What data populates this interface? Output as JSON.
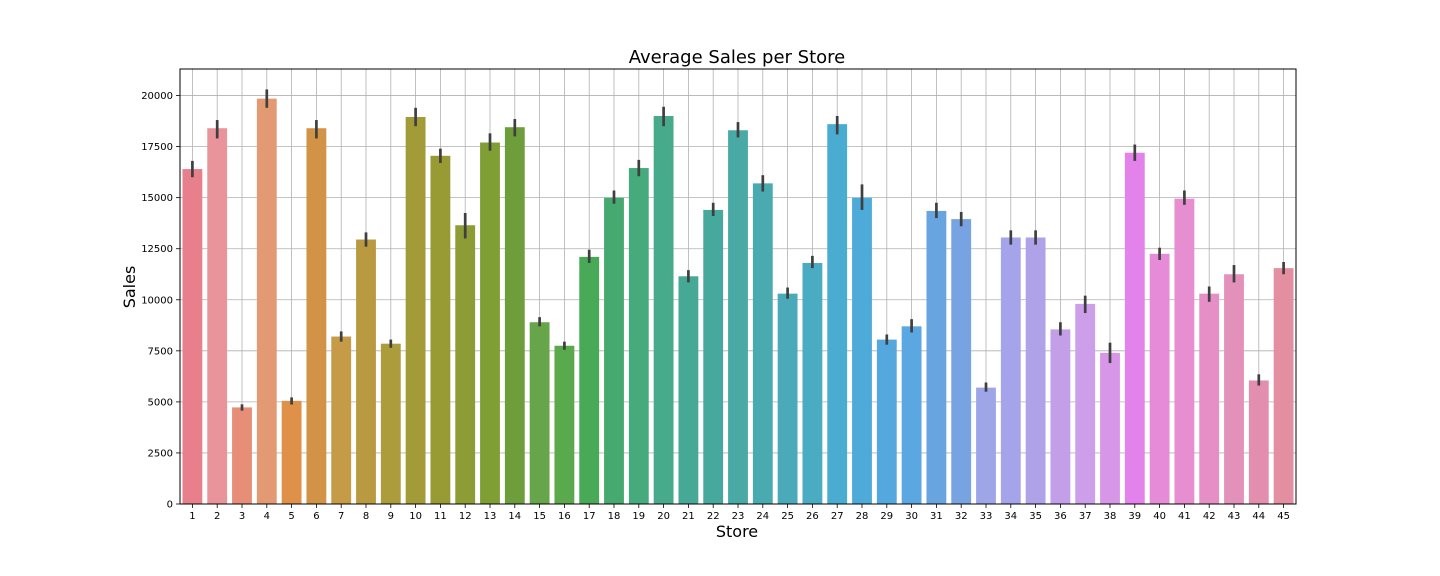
{
  "chart_data": {
    "type": "bar",
    "title": "Average Sales per Store",
    "xlabel": "Store",
    "ylabel": "Sales",
    "ylim": [
      0,
      21300
    ],
    "yticks": [
      0,
      2500,
      5000,
      7500,
      10000,
      12500,
      15000,
      17500,
      20000
    ],
    "grid": true,
    "categories": [
      "1",
      "2",
      "3",
      "4",
      "5",
      "6",
      "7",
      "8",
      "9",
      "10",
      "11",
      "12",
      "13",
      "14",
      "15",
      "16",
      "17",
      "18",
      "19",
      "20",
      "21",
      "22",
      "23",
      "24",
      "25",
      "26",
      "27",
      "28",
      "29",
      "30",
      "31",
      "32",
      "33",
      "34",
      "35",
      "36",
      "37",
      "38",
      "39",
      "40",
      "41",
      "42",
      "43",
      "44",
      "45"
    ],
    "values": [
      16400,
      18400,
      4730,
      19850,
      5050,
      18400,
      8200,
      12950,
      7850,
      18950,
      17050,
      13650,
      17700,
      18450,
      8900,
      7750,
      12100,
      15000,
      16450,
      19000,
      11150,
      14400,
      18300,
      15700,
      10300,
      11800,
      18600,
      15000,
      8050,
      8700,
      14350,
      13950,
      5700,
      13050,
      13050,
      8550,
      9800,
      7400,
      17200,
      12250,
      14950,
      10300,
      11250,
      6050,
      11550
    ],
    "error_low": [
      16000,
      17900,
      4570,
      19400,
      4870,
      17900,
      7950,
      12600,
      7650,
      18500,
      16700,
      13000,
      17300,
      18000,
      8700,
      7550,
      11800,
      14700,
      16050,
      18500,
      10850,
      14100,
      17950,
      15300,
      10050,
      11550,
      18100,
      14400,
      7800,
      8400,
      14000,
      13600,
      5500,
      12700,
      12700,
      8250,
      9350,
      6900,
      16800,
      11950,
      14650,
      9900,
      10850,
      5800,
      11250
    ],
    "error_high": [
      16800,
      18800,
      4880,
      20300,
      5220,
      18800,
      8450,
      13300,
      8050,
      19400,
      17400,
      14250,
      18150,
      18850,
      9150,
      7950,
      12450,
      15350,
      16850,
      19450,
      11450,
      14750,
      18700,
      16100,
      10600,
      12150,
      19000,
      15650,
      8300,
      9050,
      14750,
      14300,
      5950,
      13400,
      13400,
      8900,
      10200,
      7900,
      17600,
      12550,
      15350,
      10650,
      11700,
      6350,
      11850
    ],
    "colors": [
      "#e8808c",
      "#e8949a",
      "#e78e78",
      "#e39a72",
      "#df9149",
      "#d29346",
      "#c59b48",
      "#b99a40",
      "#ac9c3c",
      "#a29b37",
      "#989b34",
      "#8d9c35",
      "#7f9f34",
      "#6e9d3c",
      "#66a549",
      "#5aa94d",
      "#48a957",
      "#46aa70",
      "#45ab7d",
      "#47aa8a",
      "#46a996",
      "#47a99e",
      "#48a9a5",
      "#49aab0",
      "#4aaab9",
      "#4aacc3",
      "#4bacd1",
      "#4eaad9",
      "#55a8de",
      "#5aa7e1",
      "#68a4e0",
      "#77a3e2",
      "#9fa6e8",
      "#a5a3ea",
      "#b0a2e9",
      "#c39fea",
      "#cd9ee9",
      "#d796e8",
      "#e382ea",
      "#e58bd7",
      "#e68ecf",
      "#e68fc6",
      "#e391bb",
      "#e38eae",
      "#e38ea1"
    ]
  }
}
